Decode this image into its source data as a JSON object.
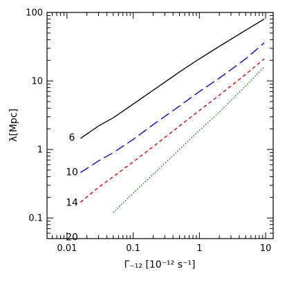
{
  "chart_data": {
    "type": "line",
    "xscale": "log",
    "yscale": "log",
    "xlim": [
      0.005,
      13
    ],
    "ylim": [
      0.05,
      100
    ],
    "xlabel": "Γ₋₁₂ [10⁻¹² s⁻¹]",
    "ylabel": "λ[Mpc]",
    "x_ticks": [
      {
        "value": 0.01,
        "label": "0.01"
      },
      {
        "value": 0.1,
        "label": "0.1"
      },
      {
        "value": 1,
        "label": "1"
      },
      {
        "value": 10,
        "label": "10"
      }
    ],
    "y_ticks": [
      {
        "value": 0.1,
        "label": "0.1"
      },
      {
        "value": 1,
        "label": "1"
      },
      {
        "value": 10,
        "label": "10"
      },
      {
        "value": 100,
        "label": "100"
      }
    ],
    "grid": false,
    "series": [
      {
        "label": "6",
        "color": "#000000",
        "dash": "solid",
        "x": [
          0.016,
          0.03,
          0.05,
          0.1,
          0.2,
          0.5,
          1,
          2,
          5,
          9.5
        ],
        "y": [
          1.45,
          2.2,
          2.9,
          4.6,
          7.3,
          13.5,
          21,
          32,
          55,
          80
        ]
      },
      {
        "label": "10",
        "color": "#0000cc",
        "dash": "long-dash",
        "x": [
          0.016,
          0.03,
          0.05,
          0.1,
          0.2,
          0.5,
          1,
          2,
          5,
          9.5
        ],
        "y": [
          0.46,
          0.68,
          0.9,
          1.4,
          2.3,
          4.3,
          7.0,
          11,
          21,
          36
        ]
      },
      {
        "label": "14",
        "color": "#dd0000",
        "dash": "short-dash",
        "x": [
          0.016,
          0.03,
          0.05,
          0.1,
          0.2,
          0.5,
          1,
          2,
          5,
          9.5
        ],
        "y": [
          0.17,
          0.28,
          0.4,
          0.66,
          1.1,
          2.2,
          3.7,
          6.2,
          12.5,
          21
        ]
      },
      {
        "label": "20",
        "color": "#007700",
        "dash": "dotted",
        "x": [
          0.05,
          0.1,
          0.2,
          0.5,
          1,
          2,
          5,
          9.5
        ],
        "y": [
          0.12,
          0.23,
          0.43,
          1.0,
          1.9,
          3.5,
          8.5,
          16
        ]
      }
    ]
  },
  "curve_labels": [
    {
      "text": "6",
      "y": 1.5
    },
    {
      "text": "10",
      "y": 0.47
    },
    {
      "text": "14",
      "y": 0.17
    },
    {
      "text": "20",
      "y": 0.053
    }
  ]
}
